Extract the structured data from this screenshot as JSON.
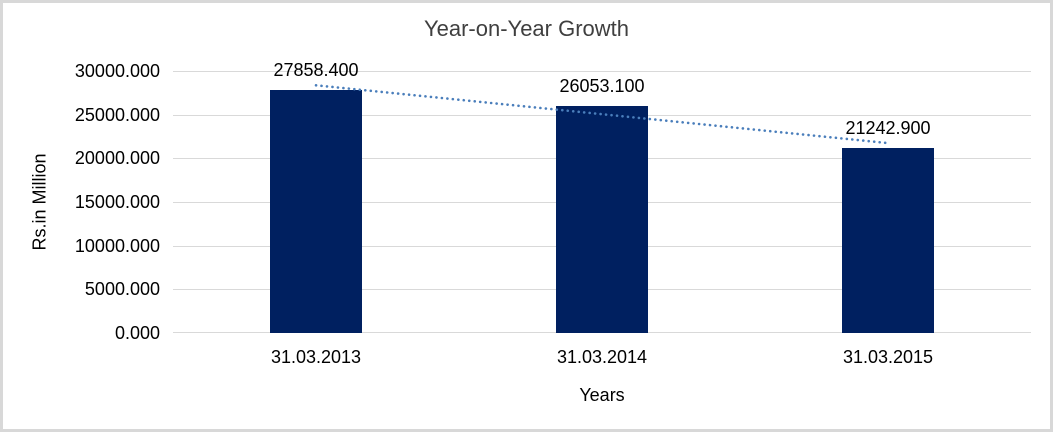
{
  "chart_data": {
    "type": "bar",
    "title": "Year-on-Year Growth",
    "categories": [
      "31.03.2013",
      "31.03.2014",
      "31.03.2015"
    ],
    "values": [
      27858.4,
      26053.1,
      21242.9
    ],
    "data_labels": [
      "27858.400",
      "26053.100",
      "21242.900"
    ],
    "xlabel": "Years",
    "ylabel": "Rs.in Million",
    "ylim": [
      0,
      30000
    ],
    "ytick_labels": [
      "0.000",
      "5000.000",
      "10000.000",
      "15000.000",
      "20000.000",
      "25000.000",
      "30000.000"
    ],
    "grid": true,
    "legend": "none",
    "trendline": {
      "type": "linear",
      "style": "dotted"
    },
    "colors": {
      "bar": "#002060",
      "trendline": "#4a7ebb",
      "gridline": "#d9d9d9",
      "axis_line": "#d9d9d9",
      "frame_border": "#d8d8d8",
      "title_text": "#3f3f3f",
      "label_text": "#000000",
      "background": "#ffffff"
    }
  }
}
